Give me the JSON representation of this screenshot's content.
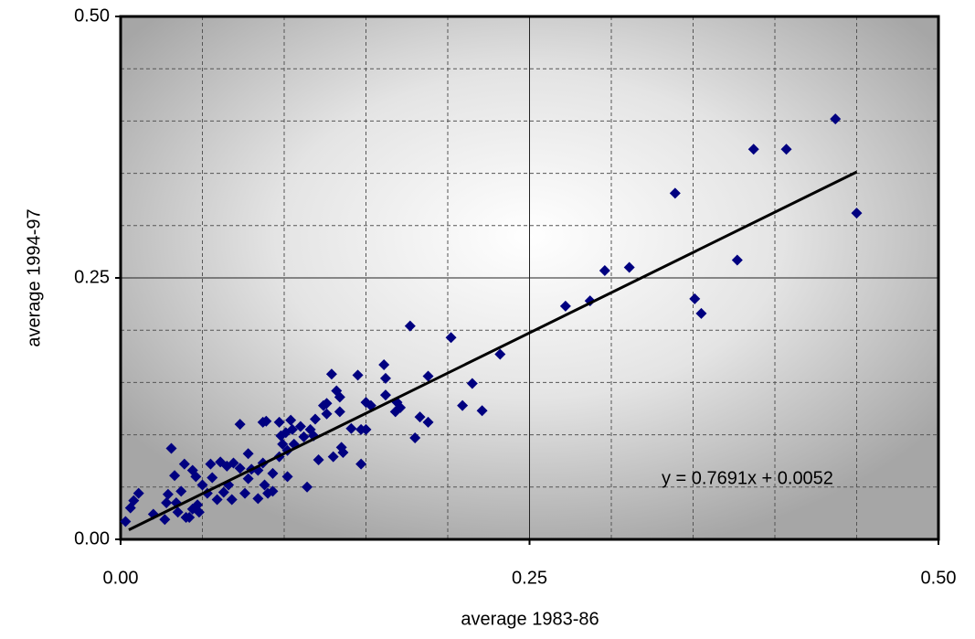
{
  "chart_data": {
    "type": "scatter",
    "xlabel": "average 1983-86",
    "ylabel": "average 1994-97",
    "color": "#000080",
    "x": [
      0.437,
      0.387,
      0.407,
      0.339,
      0.45,
      0.377,
      0.296,
      0.311,
      0.272,
      0.287,
      0.351,
      0.355,
      0.177,
      0.202,
      0.232,
      0.161,
      0.188,
      0.162,
      0.215,
      0.145,
      0.129,
      0.162,
      0.132,
      0.134,
      0.15,
      0.153,
      0.169,
      0.171,
      0.168,
      0.183,
      0.188,
      0.209,
      0.221,
      0.18,
      0.124,
      0.119,
      0.126,
      0.134,
      0.116,
      0.11,
      0.105,
      0.101,
      0.089,
      0.073,
      0.087,
      0.141,
      0.147,
      0.15,
      0.135,
      0.136,
      0.147,
      0.121,
      0.13,
      0.114,
      0.098,
      0.099,
      0.106,
      0.097,
      0.102,
      0.093,
      0.088,
      0.093,
      0.09,
      0.078,
      0.078,
      0.073,
      0.08,
      0.084,
      0.087,
      0.069,
      0.061,
      0.065,
      0.055,
      0.056,
      0.066,
      0.063,
      0.068,
      0.059,
      0.053,
      0.05,
      0.046,
      0.044,
      0.039,
      0.033,
      0.031,
      0.029,
      0.028,
      0.027,
      0.034,
      0.035,
      0.04,
      0.042,
      0.044,
      0.047,
      0.048,
      0.037,
      0.02,
      0.011,
      0.008,
      0.006,
      0.003,
      0.104,
      0.112,
      0.102,
      0.118,
      0.084,
      0.076,
      0.097,
      0.126
    ],
    "values": [
      0.402,
      0.373,
      0.373,
      0.331,
      0.312,
      0.267,
      0.257,
      0.26,
      0.223,
      0.228,
      0.23,
      0.216,
      0.204,
      0.193,
      0.177,
      0.167,
      0.156,
      0.154,
      0.149,
      0.157,
      0.158,
      0.138,
      0.142,
      0.136,
      0.131,
      0.128,
      0.131,
      0.126,
      0.122,
      0.117,
      0.112,
      0.128,
      0.123,
      0.097,
      0.128,
      0.115,
      0.12,
      0.122,
      0.105,
      0.108,
      0.105,
      0.102,
      0.113,
      0.11,
      0.112,
      0.106,
      0.105,
      0.105,
      0.088,
      0.083,
      0.072,
      0.076,
      0.079,
      0.05,
      0.099,
      0.091,
      0.091,
      0.079,
      0.06,
      0.063,
      0.052,
      0.046,
      0.044,
      0.058,
      0.082,
      0.068,
      0.067,
      0.066,
      0.073,
      0.073,
      0.074,
      0.07,
      0.072,
      0.059,
      0.052,
      0.045,
      0.038,
      0.038,
      0.044,
      0.052,
      0.06,
      0.066,
      0.072,
      0.061,
      0.087,
      0.043,
      0.035,
      0.019,
      0.035,
      0.026,
      0.021,
      0.021,
      0.029,
      0.033,
      0.026,
      0.046,
      0.024,
      0.044,
      0.037,
      0.03,
      0.017,
      0.114,
      0.098,
      0.085,
      0.099,
      0.039,
      0.044,
      0.112,
      0.13
    ],
    "trendline": {
      "label": "y = 0.7691x + 0.0052",
      "slope": 0.7691,
      "intercept": 0.0052,
      "x": [
        0.005,
        0.45
      ]
    },
    "xlim": [
      0,
      0.5
    ],
    "ylim": [
      0,
      0.5
    ],
    "xticks": [
      {
        "value": 0,
        "label": "0.00"
      },
      {
        "value": 0.25,
        "label": "0.25"
      },
      {
        "value": 0.5,
        "label": "0.50"
      }
    ],
    "yticks": [
      {
        "value": 0,
        "label": "0.00"
      },
      {
        "value": 0.25,
        "label": "0.25"
      },
      {
        "value": 0.5,
        "label": "0.50"
      }
    ],
    "xgrid_minor": [
      0.05,
      0.1,
      0.15,
      0.2,
      0.3,
      0.35,
      0.4,
      0.45
    ],
    "ygrid_minor": [
      0.05,
      0.1,
      0.15,
      0.2,
      0.3,
      0.35,
      0.4,
      0.45
    ],
    "grid": true
  }
}
